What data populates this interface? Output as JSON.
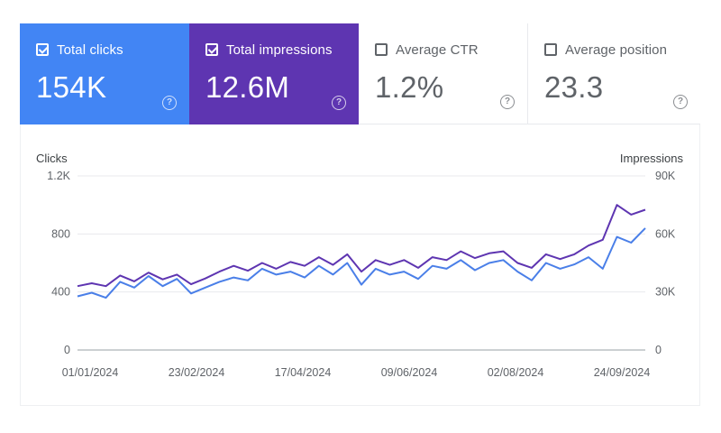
{
  "metrics": [
    {
      "label": "Total clicks",
      "value": "154K",
      "checked": true,
      "color": "#4285f4"
    },
    {
      "label": "Total impressions",
      "value": "12.6M",
      "checked": true,
      "color": "#5e35b1"
    },
    {
      "label": "Average CTR",
      "value": "1.2%",
      "checked": false,
      "color": "#ffffff"
    },
    {
      "label": "Average position",
      "value": "23.3",
      "checked": false,
      "color": "#ffffff"
    }
  ],
  "help_glyph": "?",
  "chart_data": {
    "type": "line",
    "left_axis": {
      "label": "Clicks",
      "ticks": [
        "0",
        "400",
        "800",
        "1.2K"
      ],
      "range": [
        0,
        1200
      ]
    },
    "right_axis": {
      "label": "Impressions",
      "ticks": [
        "0",
        "30K",
        "60K",
        "90K"
      ],
      "range": [
        0,
        90000
      ]
    },
    "x_ticks": [
      "01/01/2024",
      "23/02/2024",
      "17/04/2024",
      "09/06/2024",
      "02/08/2024",
      "24/09/2024"
    ],
    "x_range": [
      "2024-01-01",
      "2024-10-07"
    ],
    "grid": "horizontal",
    "series": [
      {
        "axis": "left",
        "color": "#4a7fe8",
        "x": [
          "2024-01-01",
          "2024-01-08",
          "2024-01-15",
          "2024-01-22",
          "2024-01-29",
          "2024-02-05",
          "2024-02-12",
          "2024-02-19",
          "2024-02-26",
          "2024-03-04",
          "2024-03-11",
          "2024-03-18",
          "2024-03-25",
          "2024-04-01",
          "2024-04-08",
          "2024-04-15",
          "2024-04-22",
          "2024-04-29",
          "2024-05-06",
          "2024-05-13",
          "2024-05-20",
          "2024-05-27",
          "2024-06-03",
          "2024-06-10",
          "2024-06-17",
          "2024-06-24",
          "2024-07-01",
          "2024-07-08",
          "2024-07-15",
          "2024-07-22",
          "2024-07-29",
          "2024-08-05",
          "2024-08-12",
          "2024-08-19",
          "2024-08-26",
          "2024-09-02",
          "2024-09-09",
          "2024-09-16",
          "2024-09-23",
          "2024-09-30",
          "2024-10-07"
        ],
        "values": [
          370,
          395,
          360,
          470,
          430,
          510,
          440,
          490,
          390,
          430,
          470,
          500,
          480,
          560,
          520,
          540,
          500,
          580,
          520,
          600,
          450,
          560,
          520,
          540,
          490,
          580,
          560,
          620,
          550,
          600,
          620,
          540,
          480,
          600,
          560,
          590,
          640,
          560,
          780,
          740,
          840
        ]
      },
      {
        "axis": "right",
        "color": "#5e35b1",
        "x": [
          "2024-01-01",
          "2024-01-08",
          "2024-01-15",
          "2024-01-22",
          "2024-01-29",
          "2024-02-05",
          "2024-02-12",
          "2024-02-19",
          "2024-02-26",
          "2024-03-04",
          "2024-03-11",
          "2024-03-18",
          "2024-03-25",
          "2024-04-01",
          "2024-04-08",
          "2024-04-15",
          "2024-04-22",
          "2024-04-29",
          "2024-05-06",
          "2024-05-13",
          "2024-05-20",
          "2024-05-27",
          "2024-06-03",
          "2024-06-10",
          "2024-06-17",
          "2024-06-24",
          "2024-07-01",
          "2024-07-08",
          "2024-07-15",
          "2024-07-22",
          "2024-07-29",
          "2024-08-05",
          "2024-08-12",
          "2024-08-19",
          "2024-08-26",
          "2024-09-02",
          "2024-09-09",
          "2024-09-16",
          "2024-09-23",
          "2024-09-30",
          "2024-10-07"
        ],
        "values": [
          33000,
          34500,
          33000,
          38500,
          35500,
          40000,
          36500,
          39000,
          34000,
          37000,
          40500,
          43500,
          41000,
          45000,
          42000,
          45500,
          43500,
          48000,
          44000,
          49500,
          40500,
          46500,
          44000,
          46500,
          42500,
          48000,
          46500,
          51000,
          47500,
          50000,
          51000,
          45000,
          42500,
          49500,
          47000,
          49500,
          54000,
          57000,
          75000,
          70000,
          72500
        ]
      }
    ]
  }
}
